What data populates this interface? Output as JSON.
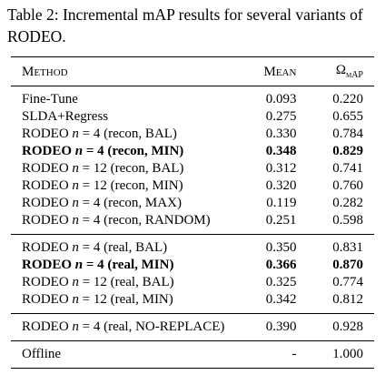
{
  "caption": "Table 2: Incremental mAP results for several variants of RODEO.",
  "table": {
    "header": {
      "method": "Method",
      "mean": "Mean",
      "omega": {
        "symbol": "Ω",
        "sub": "mAP"
      }
    },
    "groups": [
      [
        {
          "method": "Fine-Tune",
          "mean": "0.093",
          "omega": "0.220"
        },
        {
          "method": "SLDA+Regress",
          "mean": "0.275",
          "omega": "0.655"
        },
        {
          "method": "RODEO n = 4 (recon, BAL)",
          "mean": "0.330",
          "omega": "0.784"
        },
        {
          "method": "RODEO n = 4 (recon, MIN)",
          "mean": "0.348",
          "omega": "0.829",
          "bold": true
        },
        {
          "method": "RODEO n = 12 (recon, BAL)",
          "mean": "0.312",
          "omega": "0.741"
        },
        {
          "method": "RODEO n = 12 (recon, MIN)",
          "mean": "0.320",
          "omega": "0.760"
        },
        {
          "method": "RODEO n = 4 (recon, MAX)",
          "mean": "0.119",
          "omega": "0.282"
        },
        {
          "method": "RODEO n = 4 (recon, RANDOM)",
          "mean": "0.251",
          "omega": "0.598"
        }
      ],
      [
        {
          "method": "RODEO n = 4 (real, BAL)",
          "mean": "0.350",
          "omega": "0.831"
        },
        {
          "method": "RODEO n = 4 (real, MIN)",
          "mean": "0.366",
          "omega": "0.870",
          "bold": true
        },
        {
          "method": "RODEO n = 12 (real, BAL)",
          "mean": "0.325",
          "omega": "0.774"
        },
        {
          "method": "RODEO n = 12 (real, MIN)",
          "mean": "0.342",
          "omega": "0.812"
        }
      ],
      [
        {
          "method": "RODEO n = 4 (real, NO-REPLACE)",
          "mean": "0.390",
          "omega": "0.928"
        }
      ],
      [
        {
          "method": "Offline",
          "mean": "-",
          "omega": "1.000"
        }
      ]
    ]
  }
}
